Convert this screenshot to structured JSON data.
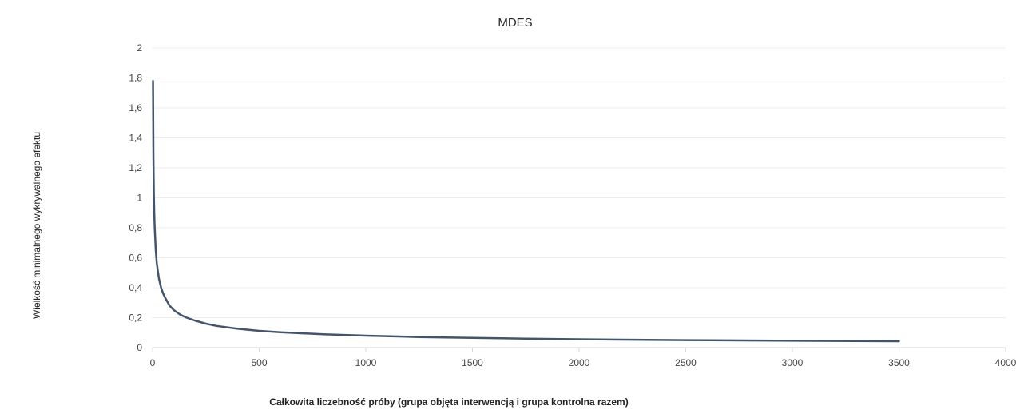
{
  "chart_data": {
    "type": "line",
    "title": "MDES",
    "xlabel": "Całkowita liczebność próby (grupa objęta interwencją i grupa kontrolna razem)",
    "ylabel": "Wielkość minimalnego wykrywalnego efektu",
    "xlim": [
      0,
      4000
    ],
    "ylim": [
      0,
      2
    ],
    "x_ticks": [
      "0",
      "500",
      "1000",
      "1500",
      "2000",
      "2500",
      "3000",
      "3500",
      "4000"
    ],
    "y_ticks": [
      "0",
      "0,2",
      "0,4",
      "0,6",
      "0,8",
      "1",
      "1,2",
      "1,4",
      "1,6",
      "1,8",
      "2"
    ],
    "grid": true,
    "legend": "none",
    "series": [
      {
        "line_color": "#44546a",
        "x": [
          2,
          4,
          6,
          8,
          10,
          15,
          20,
          30,
          40,
          50,
          60,
          80,
          100,
          130,
          160,
          200,
          250,
          300,
          400,
          500,
          600,
          800,
          1000,
          1250,
          1500,
          1750,
          2000,
          2500,
          3000,
          3500
        ],
        "y": [
          1.78,
          1.26,
          1.03,
          0.89,
          0.8,
          0.65,
          0.56,
          0.46,
          0.4,
          0.36,
          0.33,
          0.28,
          0.25,
          0.22,
          0.2,
          0.18,
          0.16,
          0.145,
          0.126,
          0.112,
          0.103,
          0.089,
          0.08,
          0.071,
          0.065,
          0.06,
          0.056,
          0.05,
          0.046,
          0.043
        ]
      }
    ]
  },
  "colors": {
    "line": "#44546a",
    "grid": "#ececec",
    "axis": "#d9d9d9",
    "background": "#ffffff"
  }
}
